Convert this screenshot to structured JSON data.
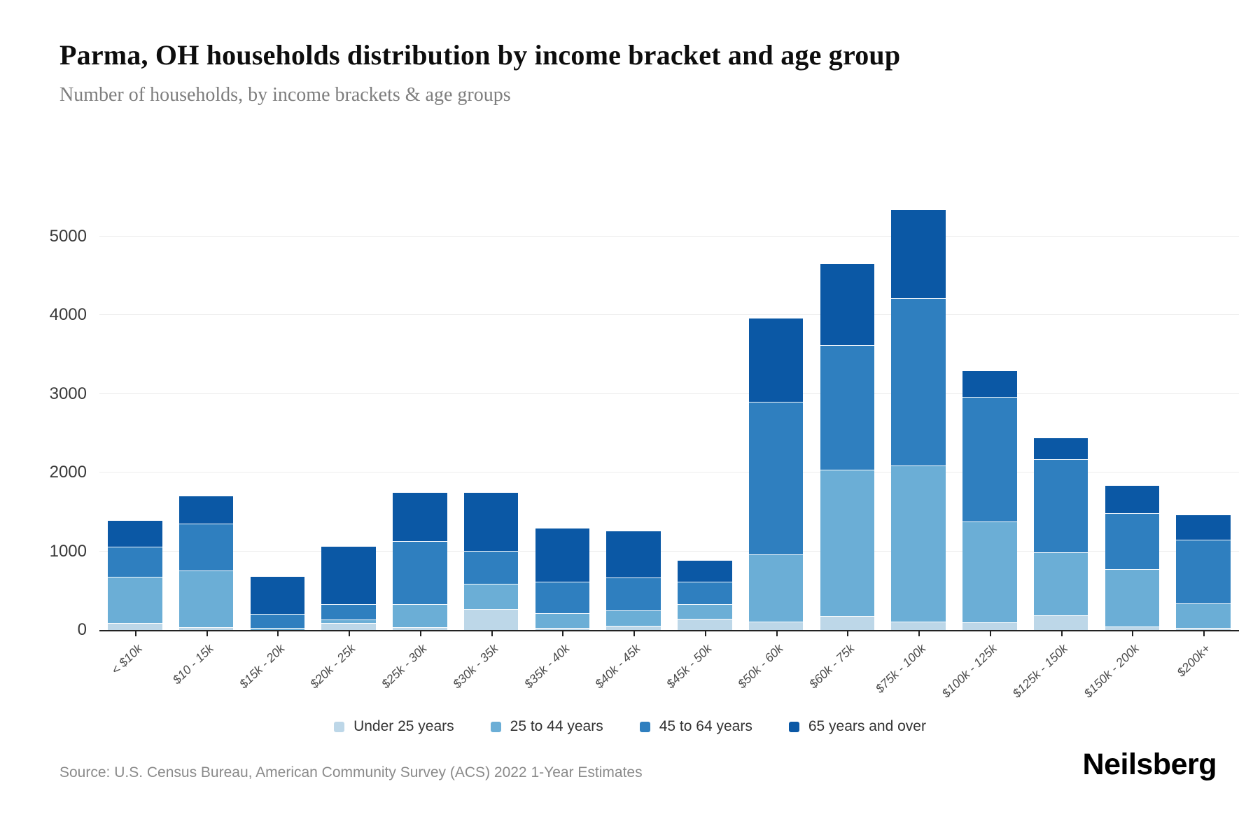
{
  "title": "Parma, OH households distribution by income bracket and age group",
  "subtitle": "Number of households, by income brackets & age groups",
  "source": "Source: U.S. Census Bureau, American Community Survey (ACS) 2022 1-Year Estimates",
  "brand": "Neilsberg",
  "colors": {
    "under_25": "#bdd7e8",
    "25_to_44": "#6baed6",
    "45_to_64": "#2f7fbf",
    "65_over": "#0b58a5",
    "gridline": "#ececec",
    "axis": "#222222"
  },
  "chart_data": {
    "type": "bar",
    "stacked": true,
    "grid": "horizontal",
    "legend_position": "bottom",
    "ylim": [
      0,
      5500
    ],
    "yticks": [
      0,
      1000,
      2000,
      3000,
      4000,
      5000
    ],
    "xlabel": "",
    "ylabel": "",
    "categories": [
      "< $10k",
      "$10 - 15k",
      "$15k - 20k",
      "$20k - 25k",
      "$25k - 30k",
      "$30k - 35k",
      "$35k - 40k",
      "$40k - 45k",
      "$45k - 50k",
      "$50k - 60k",
      "$60k - 75k",
      "$75k - 100k",
      "$100k - 125k",
      "$125k - 150k",
      "$150k - 200k",
      "$200k+"
    ],
    "series": [
      {
        "name": "Under 25 years",
        "color": "#bdd7e8",
        "values": [
          90,
          40,
          0,
          90,
          40,
          265,
          25,
          55,
          145,
          105,
          180,
          105,
          100,
          190,
          45,
          30
        ]
      },
      {
        "name": "25 to 44 years",
        "color": "#6baed6",
        "values": [
          590,
          715,
          25,
          40,
          290,
          325,
          185,
          190,
          185,
          860,
          1860,
          1985,
          1280,
          795,
          730,
          310
        ]
      },
      {
        "name": "45 to 64 years",
        "color": "#2f7fbf",
        "values": [
          375,
          600,
          180,
          200,
          800,
          420,
          400,
          420,
          285,
          1935,
          1580,
          2130,
          1580,
          1185,
          710,
          805
        ]
      },
      {
        "name": "65 years and over",
        "color": "#0b58a5",
        "values": [
          330,
          345,
          470,
          725,
          610,
          730,
          680,
          590,
          265,
          1060,
          1030,
          1120,
          330,
          270,
          345,
          310
        ]
      }
    ],
    "totals": [
      1385,
      1700,
      675,
      1055,
      1740,
      1740,
      1290,
      1255,
      880,
      3960,
      4650,
      5340,
      3290,
      2440,
      1830,
      1455
    ]
  }
}
